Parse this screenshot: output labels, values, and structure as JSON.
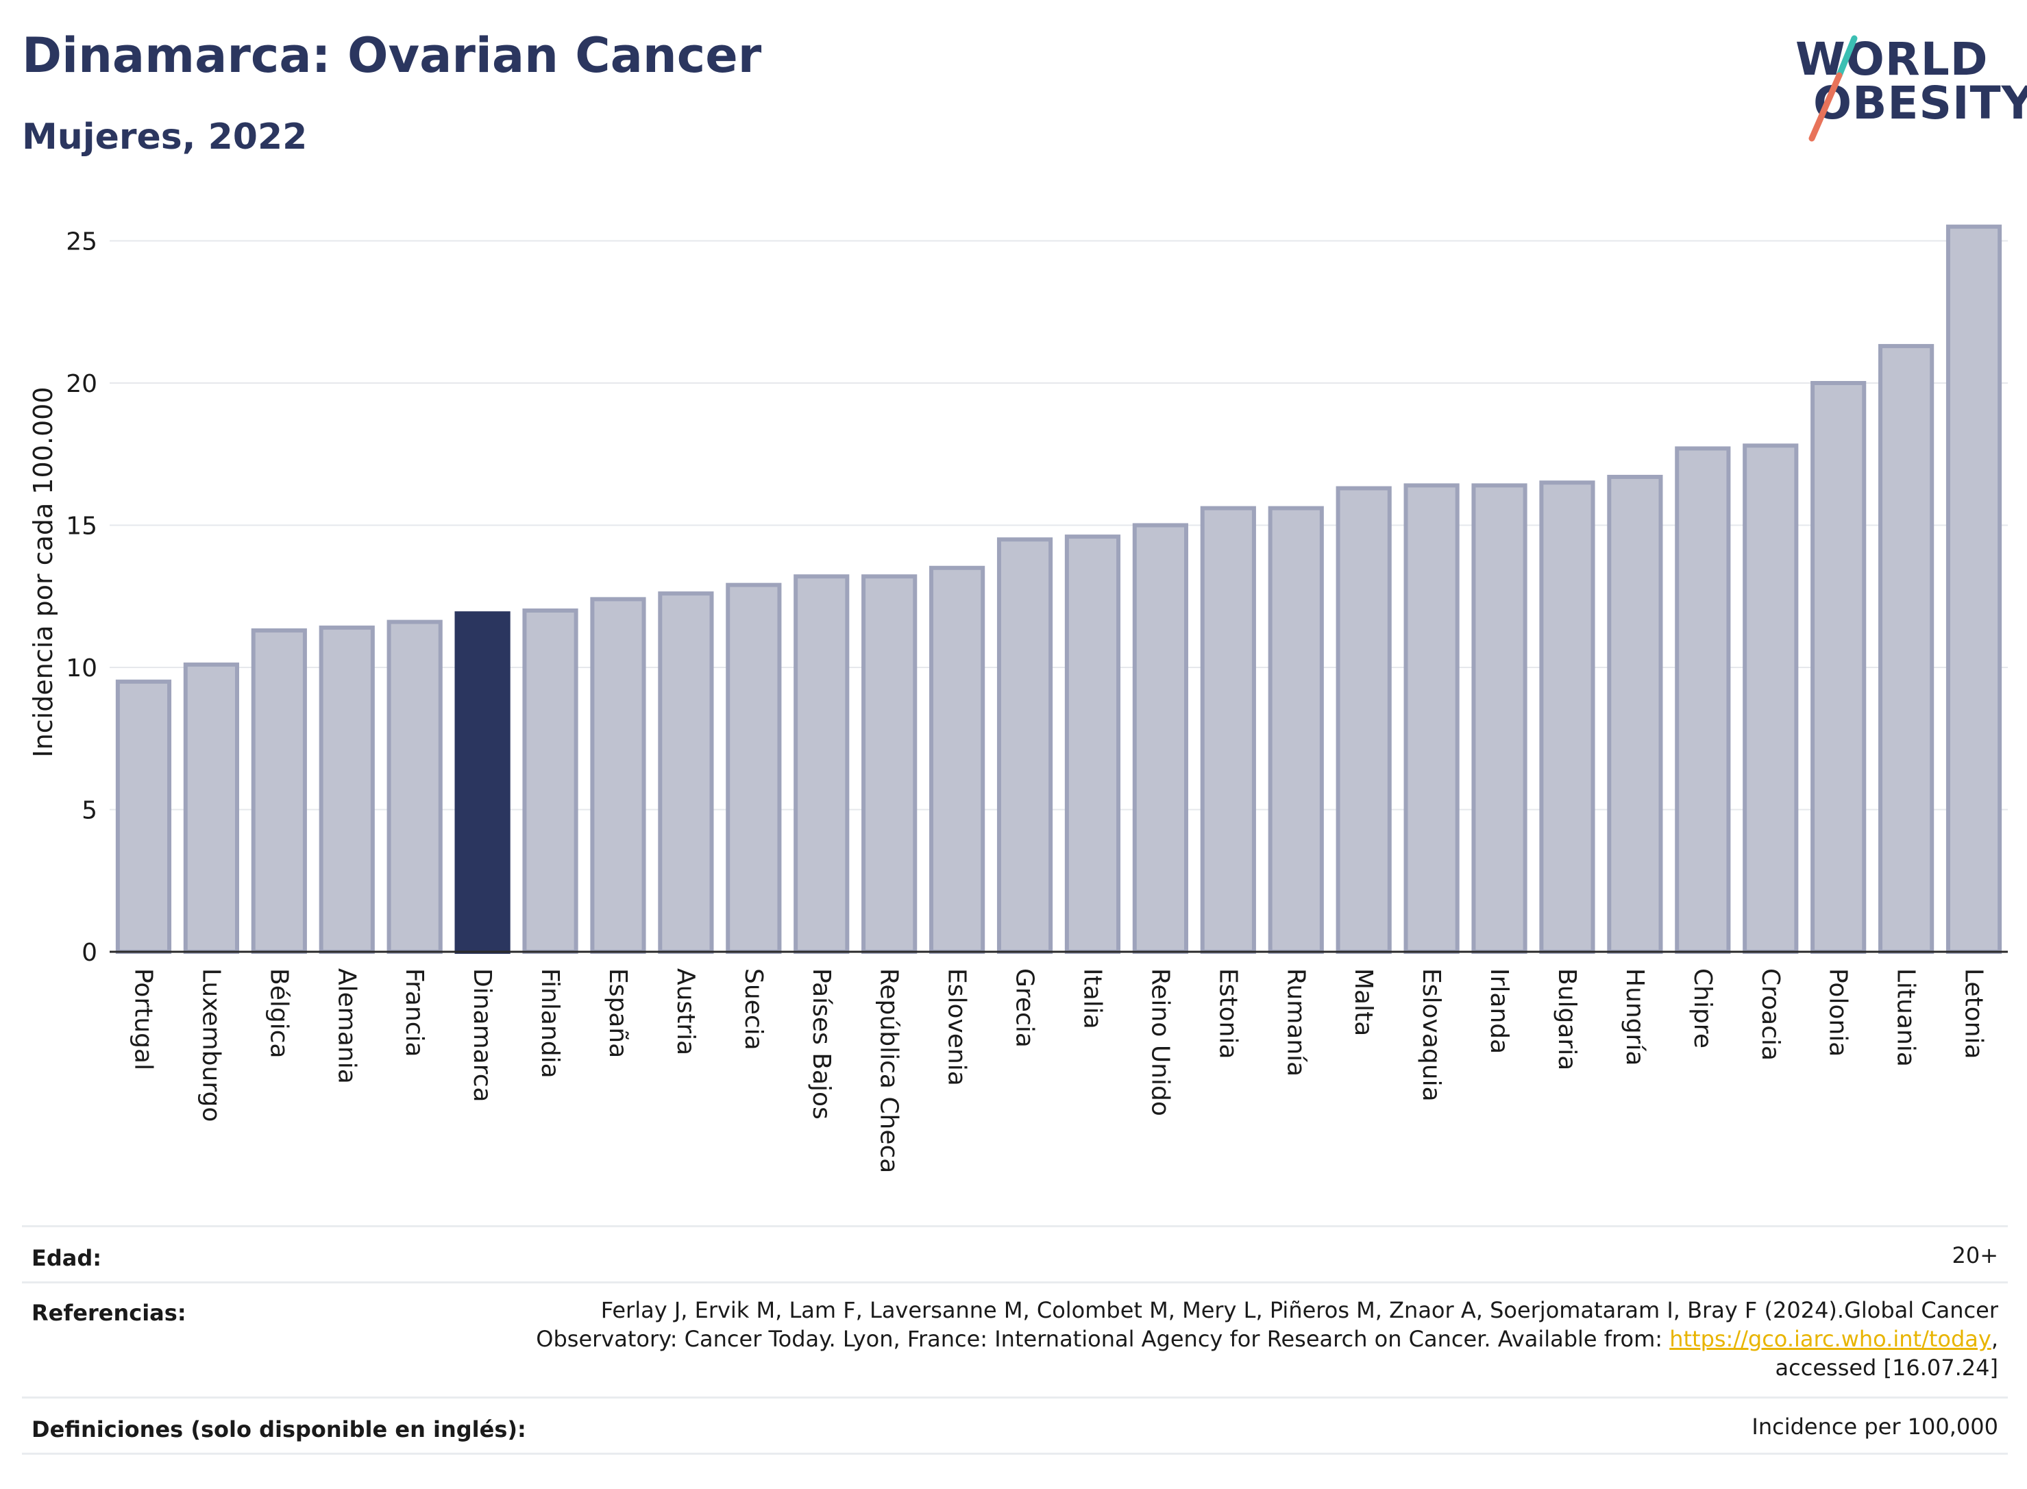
{
  "header": {
    "title": "Dinamarca: Ovarian Cancer",
    "subtitle": "Mujeres, 2022"
  },
  "logo": {
    "line1": "WORLD",
    "line2": "OBESITY",
    "slash_colors": [
      "#3bbfb3",
      "#e8735a"
    ]
  },
  "colors": {
    "highlight_bar": "#2b365f",
    "other_bar_fill": "#bfc2d0",
    "other_bar_stroke": "#9ea3bb",
    "grid": "#e6e8ec",
    "text": "#1a1a1a",
    "title": "#2b365f",
    "link": "#e8b400"
  },
  "chart_data": {
    "type": "bar",
    "ylabel": "Incidencia por cada 100.000",
    "ylim": [
      0,
      26
    ],
    "yticks": [
      0,
      5,
      10,
      15,
      20,
      25
    ],
    "grid": true,
    "highlight": "Dinamarca",
    "categories": [
      "Portugal",
      "Luxemburgo",
      "Bélgica",
      "Alemania",
      "Francia",
      "Dinamarca",
      "Finlandia",
      "España",
      "Austria",
      "Suecia",
      "Países Bajos",
      "República Checa",
      "Eslovenia",
      "Grecia",
      "Italia",
      "Reino Unido",
      "Estonia",
      "Rumanía",
      "Malta",
      "Eslovaquia",
      "Irlanda",
      "Bulgaria",
      "Hungría",
      "Chipre",
      "Croacia",
      "Polonia",
      "Lituania",
      "Letonia"
    ],
    "values": [
      9.5,
      10.1,
      11.3,
      11.4,
      11.6,
      11.9,
      12.0,
      12.4,
      12.6,
      12.9,
      13.2,
      13.2,
      13.5,
      14.5,
      14.6,
      15.0,
      15.6,
      15.6,
      16.3,
      16.4,
      16.4,
      16.5,
      16.7,
      17.7,
      17.8,
      20.0,
      21.3,
      25.5
    ]
  },
  "footer": {
    "age_label": "Edad:",
    "age_value": "20+",
    "ref_label": "Referencias:",
    "ref_line1": "Ferlay J, Ervik M, Lam F, Laversanne M, Colombet M, Mery L, Piñeros M, Znaor A, Soerjomataram I, Bray F (2024).Global Cancer",
    "ref_line2_pre": "Observatory: Cancer Today. Lyon, France: International Agency for Research on Cancer. Available from: ",
    "ref_link": "https://gco.iarc.who.int/today",
    "ref_line2_post": ",",
    "ref_line3": "accessed [16.07.24]",
    "def_label": "Definiciones (solo disponible en inglés):",
    "def_value": "Incidence per 100,000"
  }
}
